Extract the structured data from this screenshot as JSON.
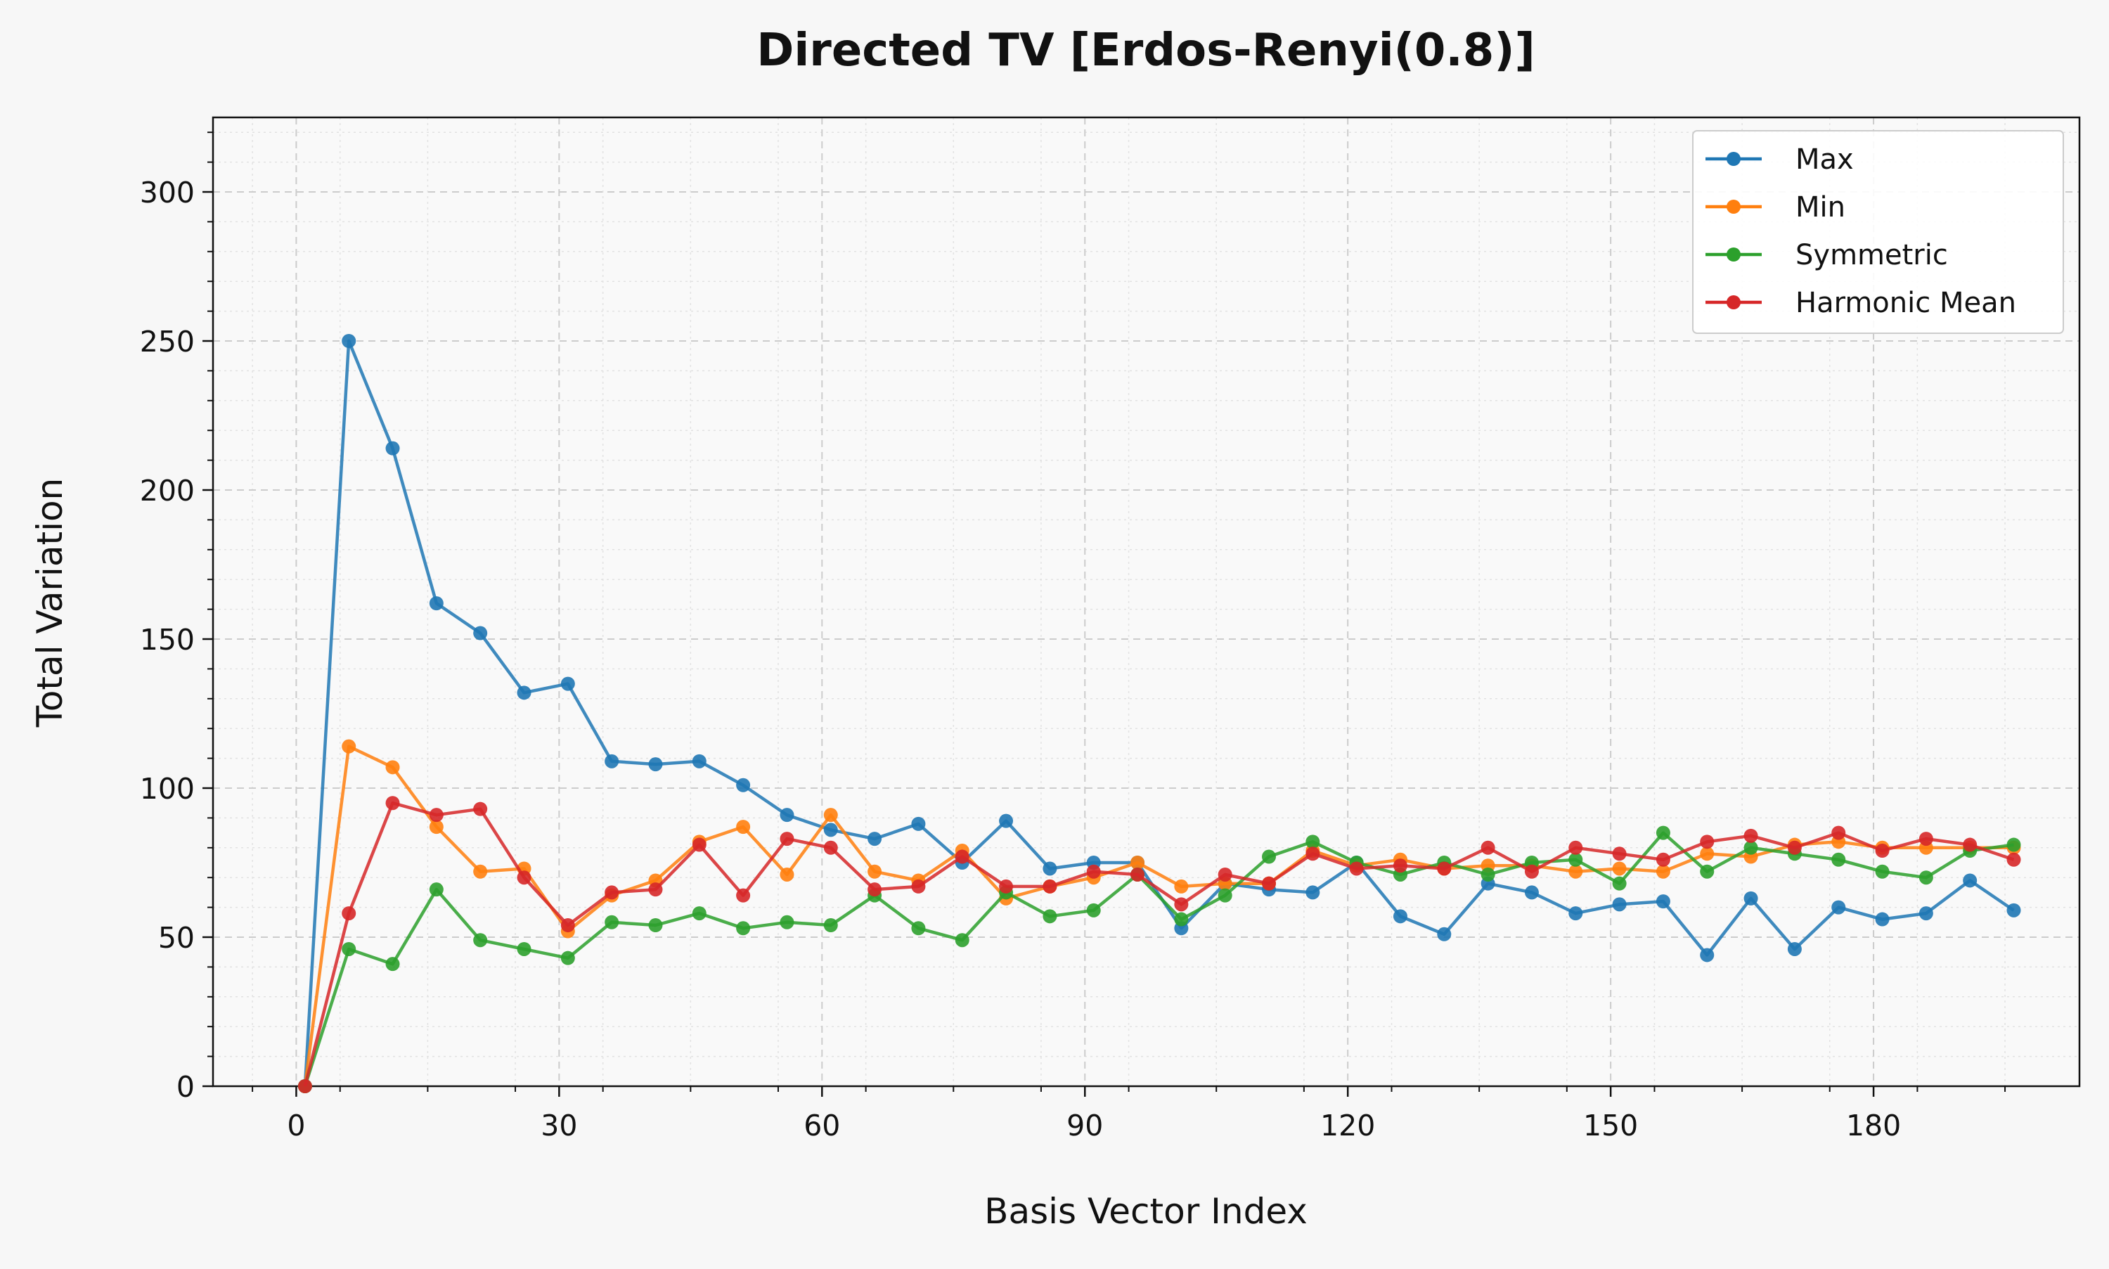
{
  "chart_data": {
    "type": "line",
    "title": "Directed TV [Erdos-Renyi(0.8)]",
    "xlabel": "Basis Vector Index",
    "ylabel": "Total Variation",
    "xlim": [
      -9.5,
      203.5
    ],
    "ylim": [
      0,
      325
    ],
    "xticks": [
      0,
      30,
      60,
      90,
      120,
      150,
      180
    ],
    "yticks": [
      0,
      50,
      100,
      150,
      200,
      250,
      300
    ],
    "grid": true,
    "legend_position": "top-right",
    "x": [
      1,
      6,
      11,
      16,
      21,
      26,
      31,
      36,
      41,
      46,
      51,
      56,
      61,
      66,
      71,
      76,
      81,
      86,
      91,
      96,
      101,
      106,
      111,
      116,
      121,
      126,
      131,
      136,
      141,
      146,
      151,
      156,
      161,
      166,
      171,
      176,
      181,
      186,
      191,
      196
    ],
    "series": [
      {
        "name": "Max",
        "color": "#1f77b4",
        "values": [
          0,
          250,
          214,
          162,
          152,
          132,
          135,
          109,
          108,
          109,
          101,
          91,
          86,
          83,
          88,
          75,
          89,
          73,
          75,
          75,
          53,
          68,
          66,
          65,
          75,
          57,
          51,
          68,
          65,
          58,
          61,
          62,
          44,
          63,
          46,
          60,
          56,
          58,
          69,
          59
        ]
      },
      {
        "name": "Min",
        "color": "#ff7f0e",
        "values": [
          0,
          114,
          107,
          87,
          72,
          73,
          52,
          64,
          69,
          82,
          87,
          71,
          91,
          72,
          69,
          79,
          63,
          67,
          70,
          75,
          67,
          68,
          68,
          79,
          74,
          76,
          73,
          74,
          74,
          72,
          73,
          72,
          78,
          77,
          81,
          82,
          80,
          80,
          80,
          80
        ]
      },
      {
        "name": "Symmetric",
        "color": "#2ca02c",
        "values": [
          0,
          46,
          41,
          66,
          49,
          46,
          43,
          55,
          54,
          58,
          53,
          55,
          54,
          64,
          53,
          49,
          65,
          57,
          59,
          71,
          56,
          64,
          77,
          82,
          75,
          71,
          75,
          71,
          75,
          76,
          68,
          85,
          72,
          80,
          78,
          76,
          72,
          70,
          79,
          81
        ]
      },
      {
        "name": "Harmonic Mean",
        "color": "#d62728",
        "values": [
          0,
          58,
          95,
          91,
          93,
          70,
          54,
          65,
          66,
          81,
          64,
          83,
          80,
          66,
          67,
          77,
          67,
          67,
          72,
          71,
          61,
          71,
          68,
          78,
          73,
          74,
          73,
          80,
          72,
          80,
          78,
          76,
          82,
          84,
          80,
          85,
          79,
          83,
          81,
          76
        ]
      }
    ]
  }
}
